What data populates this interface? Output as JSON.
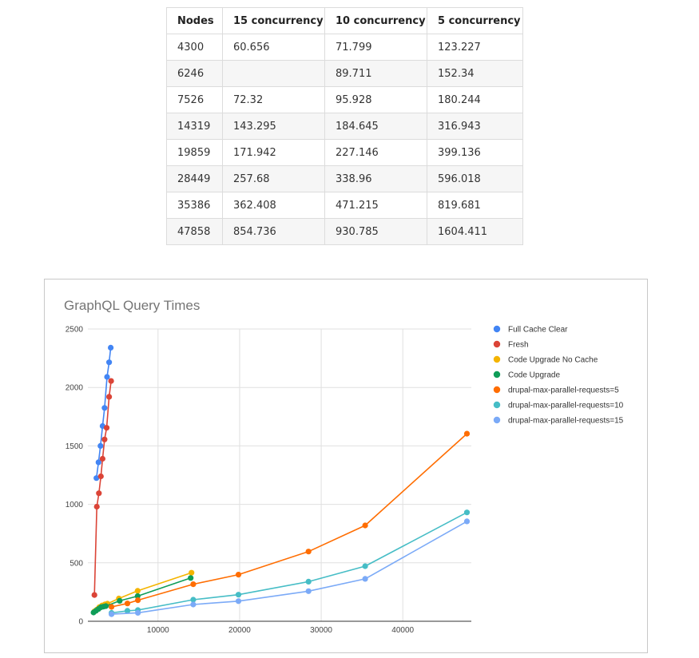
{
  "table": {
    "headers": [
      "Nodes",
      "15 concurrency",
      "10 concurrency",
      "5 concurrency"
    ],
    "rows": [
      [
        "4300",
        "60.656",
        "71.799",
        "123.227"
      ],
      [
        "6246",
        "",
        "89.711",
        "152.34"
      ],
      [
        "7526",
        "72.32",
        "95.928",
        "180.244"
      ],
      [
        "14319",
        "143.295",
        "184.645",
        "316.943"
      ],
      [
        "19859",
        "171.942",
        "227.146",
        "399.136"
      ],
      [
        "28449",
        "257.68",
        "338.96",
        "596.018"
      ],
      [
        "35386",
        "362.408",
        "471.215",
        "819.681"
      ],
      [
        "47858",
        "854.736",
        "930.785",
        "1604.411"
      ]
    ]
  },
  "chart_data": {
    "type": "line",
    "title": "GraphQL Query Times",
    "xlabel": "",
    "ylabel": "",
    "xlim": [
      1400,
      48400
    ],
    "ylim": [
      0,
      2500
    ],
    "xticks": [
      10000,
      20000,
      30000,
      40000
    ],
    "yticks": [
      0,
      500,
      1000,
      1500,
      2000,
      2500
    ],
    "grid": true,
    "legend_position": "right",
    "series": [
      {
        "name": "Full Cache Clear",
        "color": "#4285f4",
        "x": [
          2450,
          2700,
          2950,
          3200,
          3450,
          3750,
          4000,
          4200
        ],
        "y": [
          1225,
          1360,
          1500,
          1670,
          1825,
          2090,
          2215,
          2340
        ]
      },
      {
        "name": "Fresh",
        "color": "#db4437",
        "x": [
          2200,
          2500,
          2750,
          3000,
          3200,
          3450,
          3700,
          4000,
          4250
        ],
        "y": [
          225,
          980,
          1095,
          1240,
          1390,
          1555,
          1655,
          1920,
          2055
        ]
      },
      {
        "name": "Code Upgrade No Cache",
        "color": "#f4b400",
        "x": [
          2200,
          2500,
          2800,
          3150,
          3500,
          3800,
          5200,
          7500,
          14100
        ],
        "y": [
          85,
          100,
          120,
          135,
          145,
          150,
          195,
          260,
          415
        ]
      },
      {
        "name": "Code Upgrade",
        "color": "#0f9d58",
        "x": [
          2100,
          2400,
          2700,
          3000,
          3300,
          3600,
          5300,
          7500,
          14000
        ],
        "y": [
          75,
          90,
          105,
          120,
          125,
          130,
          175,
          215,
          370
        ]
      },
      {
        "name": "drupal-max-parallel-requests=5",
        "color": "#ff6d01",
        "x": [
          4300,
          6246,
          7526,
          14319,
          19859,
          28449,
          35386,
          47858
        ],
        "y": [
          123.227,
          152.34,
          180.244,
          316.943,
          399.136,
          596.018,
          819.681,
          1604.411
        ]
      },
      {
        "name": "drupal-max-parallel-requests=10",
        "color": "#46bdc6",
        "x": [
          4300,
          6246,
          7526,
          14319,
          19859,
          28449,
          35386,
          47858
        ],
        "y": [
          71.799,
          89.711,
          95.928,
          184.645,
          227.146,
          338.96,
          471.215,
          930.785
        ]
      },
      {
        "name": "drupal-max-parallel-requests=15",
        "color": "#7baaf7",
        "x": [
          4300,
          7526,
          14319,
          19859,
          28449,
          35386,
          47858
        ],
        "y": [
          60.656,
          72.32,
          143.295,
          171.942,
          257.68,
          362.408,
          854.736
        ]
      }
    ]
  }
}
